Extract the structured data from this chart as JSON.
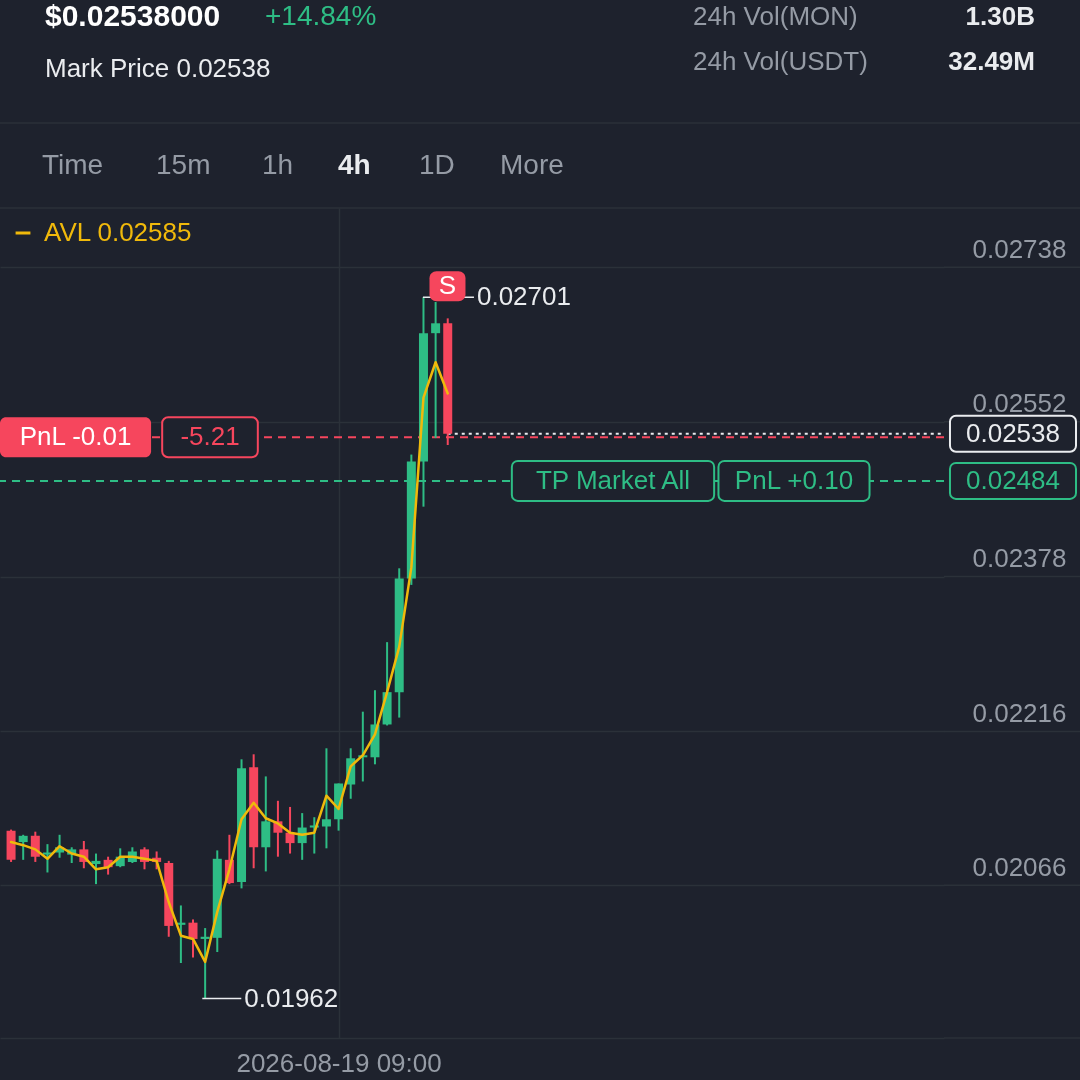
{
  "chart_data": {
    "type": "candlestick",
    "title": "$0.02538000",
    "subtitle": "Mark Price 0.02538",
    "categories": [
      null,
      null,
      null,
      null,
      null,
      null,
      null,
      null,
      null,
      null,
      null,
      null,
      null,
      null,
      null,
      null,
      null,
      null,
      null,
      null,
      null,
      null,
      null,
      null,
      null,
      null,
      null,
      "2026-08-19 09:00",
      null,
      null,
      null,
      null,
      null,
      null,
      null,
      null,
      null,
      null,
      null,
      null,
      null,
      null,
      null,
      null,
      null,
      null,
      null,
      null,
      null,
      null,
      null,
      null,
      null,
      null,
      null,
      null,
      null,
      null,
      null,
      null,
      null,
      null,
      null,
      null,
      null,
      null,
      null,
      null,
      null,
      null,
      null,
      null,
      null,
      null,
      null,
      null,
      null
    ],
    "ohlc": [
      [
        0.02118,
        0.02119,
        0.02088,
        0.0209
      ],
      [
        0.02107,
        0.02114,
        0.0209,
        0.02113
      ],
      [
        0.02113,
        0.02117,
        0.02088,
        0.02093
      ],
      [
        0.02095,
        0.02105,
        0.02078,
        0.02097
      ],
      [
        0.02097,
        0.02114,
        0.02092,
        0.02102
      ],
      [
        0.02095,
        0.02102,
        0.02087,
        0.021
      ],
      [
        0.021,
        0.02108,
        0.02082,
        0.02088
      ],
      [
        0.02086,
        0.02096,
        0.02067,
        0.02089
      ],
      [
        0.0209,
        0.02093,
        0.02076,
        0.02083
      ],
      [
        0.02084,
        0.02101,
        0.02083,
        0.02093
      ],
      [
        0.02088,
        0.02102,
        0.02087,
        0.02098
      ],
      [
        0.021,
        0.02102,
        0.02081,
        0.02088
      ],
      [
        0.02092,
        0.02098,
        0.02081,
        0.02088
      ],
      [
        0.02087,
        0.02089,
        0.02018,
        0.02028
      ],
      [
        0.02029,
        0.02047,
        0.01994,
        0.02031
      ],
      [
        0.02031,
        0.02034,
        0.01999,
        0.02016
      ],
      [
        0.02016,
        0.02026,
        0.01962,
        0.02018
      ],
      [
        0.02017,
        0.02099,
        0.02004,
        0.02091
      ],
      [
        0.0209,
        0.02114,
        0.02067,
        0.02068
      ],
      [
        0.02069,
        0.02188,
        0.02063,
        0.02179
      ],
      [
        0.0218,
        0.02193,
        0.02082,
        0.02102
      ],
      [
        0.02102,
        0.02171,
        0.02079,
        0.02127
      ],
      [
        0.02127,
        0.02147,
        0.02093,
        0.02116
      ],
      [
        0.02116,
        0.02141,
        0.02096,
        0.02106
      ],
      [
        0.02106,
        0.02135,
        0.0209,
        0.02121
      ],
      [
        0.02121,
        0.02131,
        0.02096,
        0.02123
      ],
      [
        0.02122,
        0.02199,
        0.02101,
        0.02129
      ],
      [
        0.02129,
        0.02164,
        0.02118,
        0.02164
      ],
      [
        0.02163,
        0.02199,
        0.02149,
        0.02189
      ],
      [
        0.0219,
        0.02236,
        0.02166,
        0.02192
      ],
      [
        0.0219,
        0.02258,
        0.02183,
        0.02223
      ],
      [
        0.02223,
        0.02308,
        0.02222,
        0.02256
      ],
      [
        0.02256,
        0.02387,
        0.0223,
        0.02376
      ],
      [
        0.02376,
        0.02514,
        0.02369,
        0.02506
      ],
      [
        0.02506,
        0.02701,
        0.02455,
        0.02657
      ],
      [
        0.02657,
        0.02695,
        0.02533,
        0.02669
      ],
      [
        0.02669,
        0.02675,
        0.02525,
        0.02538
      ],
      null,
      null,
      null,
      null,
      null,
      null,
      null,
      null,
      null,
      null,
      null,
      null,
      null,
      null,
      null,
      null,
      null,
      null,
      null,
      null,
      null,
      null,
      null,
      null,
      null,
      null,
      null,
      null,
      null,
      null,
      null,
      null,
      null,
      null,
      null,
      null,
      null,
      null,
      null,
      null
    ],
    "colors": [
      "#f6465d",
      "#2ebd85",
      "#f6465d",
      "#2ebd85",
      "#2ebd85",
      "#2ebd85",
      "#f6465d",
      "#2ebd85",
      "#f6465d",
      "#2ebd85",
      "#2ebd85",
      "#f6465d",
      "#f6465d",
      "#f6465d",
      "#2ebd85",
      "#f6465d",
      "#2ebd85",
      "#2ebd85",
      "#f6465d",
      "#2ebd85",
      "#f6465d",
      "#2ebd85",
      "#f6465d",
      "#f6465d",
      "#2ebd85",
      "#2ebd85",
      "#2ebd85",
      "#2ebd85",
      "#2ebd85",
      "#2ebd85",
      "#2ebd85",
      "#2ebd85",
      "#2ebd85",
      "#2ebd85",
      "#2ebd85",
      "#2ebd85",
      "#f6465d",
      null,
      null,
      null,
      null,
      null,
      null,
      null,
      null,
      null,
      null,
      null,
      null,
      null,
      null,
      null,
      null,
      null,
      null,
      null,
      null,
      null,
      null,
      null,
      null,
      null,
      null,
      null,
      null,
      null,
      null,
      null,
      null,
      null,
      null,
      null,
      null,
      null,
      null,
      null,
      null
    ],
    "series": [
      {
        "name": "AVL 0.02585",
        "type": "line",
        "color": "#f0b90b",
        "values": [
          0.02107,
          0.02104,
          0.021,
          0.02091,
          0.02103,
          0.02096,
          0.02093,
          0.02081,
          0.02083,
          0.02093,
          0.02093,
          0.02091,
          0.02089,
          0.0205,
          0.02019,
          0.02016,
          0.01995,
          0.02041,
          0.02081,
          0.02129,
          0.02145,
          0.0213,
          0.02125,
          0.02116,
          0.02114,
          0.02116,
          0.02152,
          0.02139,
          0.02181,
          0.02192,
          0.02213,
          0.02256,
          0.02303,
          0.02388,
          0.0258,
          0.02622,
          0.02585,
          null,
          null,
          null,
          null,
          null,
          null,
          null,
          null,
          null,
          null,
          null,
          null,
          null,
          null,
          null,
          null,
          null,
          null,
          null,
          null,
          null,
          null,
          null,
          null,
          null,
          null,
          null,
          null,
          null,
          null,
          null,
          null,
          null,
          null,
          null,
          null,
          null,
          null,
          null,
          null
        ]
      }
    ],
    "log": "y",
    "ylim": [
      0.01927,
      0.02813
    ],
    "yticks": [
      0.02066,
      0.02216,
      0.02378,
      0.02552,
      0.02738
    ],
    "grid": true,
    "legend": "top left",
    "ref_lines": [
      {
        "axis": "y",
        "value": 0.02534,
        "label": "PnL -0.01",
        "color": "#f6465d",
        "line_style": "dashed"
      },
      {
        "axis": "y",
        "value": 0.02538,
        "label": "0.02538",
        "color": "#eaecef",
        "line_style": "dotted"
      },
      {
        "axis": "y",
        "value": 0.02484,
        "label": "0.02484",
        "color": "#2ebd85",
        "line_style": "dashed"
      }
    ],
    "annotations": [
      "+14.84%",
      "24h Vol(MON)",
      "1.30B",
      "24h Vol(USDT)",
      "32.49M",
      "Time",
      "15m",
      "1h",
      "4h",
      "1D",
      "More",
      {
        "text": "-5.21",
        "y": 0.02534
      },
      {
        "text": "TP Market All",
        "y": 0.02484
      },
      {
        "text": "PnL +0.10",
        "y": 0.02484
      },
      "S",
      "0.02701",
      "0.01962"
    ]
  }
}
